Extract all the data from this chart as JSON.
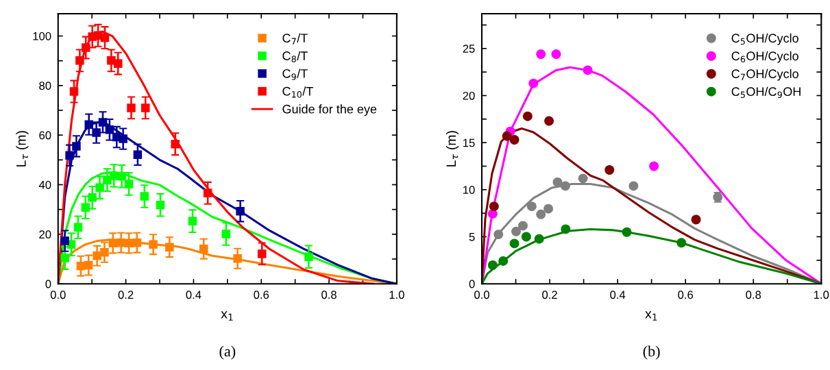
{
  "chart_data": [
    {
      "type": "scatter",
      "xlabel": "x$_{1}$",
      "ylabel": "L$_{τ}$ (m)",
      "annotations": [
        "(a)"
      ],
      "legend": "top right",
      "grid": false,
      "xlim": [
        0,
        1
      ],
      "xticks": [
        {
          "value": 0,
          "label": "0.0"
        },
        {
          "value": 0.1,
          "label": null
        },
        {
          "value": 0.2,
          "label": "0.2"
        },
        {
          "value": 0.3,
          "label": null
        },
        {
          "value": 0.4,
          "label": "0.4"
        },
        {
          "value": 0.5,
          "label": null
        },
        {
          "value": 0.6,
          "label": "0.6"
        },
        {
          "value": 0.7,
          "label": null
        },
        {
          "value": 0.8,
          "label": "0.8"
        },
        {
          "value": 0.9,
          "label": null
        },
        {
          "value": 1.0,
          "label": "1.0"
        }
      ],
      "ylim": [
        0,
        109
      ],
      "yticks": [
        0,
        {
          "value": 10,
          "label": null
        },
        20,
        {
          "value": 30,
          "label": null
        },
        40,
        {
          "value": 50,
          "label": null
        },
        60,
        {
          "value": 70,
          "label": null
        },
        80,
        {
          "value": 90,
          "label": null
        },
        100
      ],
      "series": [
        {
          "name": "C$_{7}$/T",
          "color": "#ff8000",
          "marker": "square",
          "x": [
            0.067,
            0.09,
            0.115,
            0.137,
            0.162,
            0.186,
            0.209,
            0.233,
            0.281,
            0.329,
            0.43,
            0.53
          ],
          "values": [
            7.2,
            7.5,
            11.3,
            12.7,
            16.4,
            16.6,
            16.4,
            16.6,
            15.9,
            14.8,
            14.1,
            10.2
          ],
          "errors": [
            4,
            4,
            4,
            4,
            4,
            4,
            4,
            4,
            4,
            4,
            4,
            4
          ]
        },
        {
          "name": "C$_{8}$/T",
          "color": "#00ff00",
          "marker": "square",
          "x": [
            0.02,
            0.039,
            0.059,
            0.081,
            0.101,
            0.123,
            0.145,
            0.165,
            0.188,
            0.209,
            0.255,
            0.302,
            0.397,
            0.496,
            0.74
          ],
          "values": [
            10.4,
            15.9,
            22.8,
            30.8,
            34.8,
            38.8,
            41.9,
            43.6,
            43.4,
            40.3,
            35.3,
            31.8,
            25.3,
            20.1,
            10.9
          ],
          "errors": [
            4.5,
            4.5,
            4.5,
            4.5,
            4.5,
            4.5,
            4.5,
            4.5,
            4.5,
            4.5,
            4.5,
            4.5,
            4.5,
            4.5,
            4.5
          ]
        },
        {
          "name": "C$_{9}$/T",
          "color": "#000099",
          "marker": "square",
          "x": [
            0.02,
            0.034,
            0.054,
            0.091,
            0.113,
            0.132,
            0.152,
            0.173,
            0.192,
            0.235,
            0.538
          ],
          "values": [
            17.3,
            51.8,
            55.5,
            64.3,
            61.0,
            65.2,
            62.2,
            59.2,
            58.5,
            52.1,
            29.3
          ],
          "errors": [
            4.2,
            4.2,
            4.2,
            4.2,
            4.2,
            4.2,
            4.2,
            4.2,
            4.2,
            4.2,
            4.2
          ]
        },
        {
          "name": "C$_{10}$/T",
          "color": "#ff0000",
          "marker": "square",
          "x": [
            0.047,
            0.064,
            0.082,
            0.101,
            0.118,
            0.138,
            0.157,
            0.177,
            0.216,
            0.258,
            0.346,
            0.442,
            0.602
          ],
          "values": [
            77.6,
            90.1,
            95.3,
            99.7,
            100.2,
            99.3,
            90.1,
            88.9,
            71.0,
            71.0,
            56.4,
            36.6,
            12.1
          ],
          "errors": [
            4.4,
            4.4,
            4.4,
            4.4,
            4.4,
            4.4,
            4.4,
            4.4,
            4.4,
            4.4,
            4.4,
            4.4,
            4.4
          ]
        },
        {
          "type": "line",
          "color": "#ff8000",
          "marker": "none",
          "line_style": "solid",
          "x": [
            0,
            0.02,
            0.047,
            0.081,
            0.115,
            0.155,
            0.2,
            0.25,
            0.3,
            0.354,
            0.385,
            0.455,
            0.545,
            0.624,
            0.725,
            0.826,
            0.928,
            1
          ],
          "values": [
            0,
            9.5,
            13.2,
            15.9,
            17.3,
            17.8,
            17.3,
            16.4,
            15.7,
            15.0,
            14.1,
            11.3,
            9.5,
            7.6,
            5.3,
            3.0,
            1.2,
            0
          ]
        },
        {
          "type": "line",
          "color": "#00ff00",
          "marker": "none",
          "line_style": "solid",
          "x": [
            0,
            0.02,
            0.04,
            0.06,
            0.08,
            0.1,
            0.13,
            0.16,
            0.2,
            0.25,
            0.3,
            0.354,
            0.385,
            0.455,
            0.545,
            0.624,
            0.725,
            0.826,
            0.928,
            1
          ],
          "values": [
            0,
            20,
            30,
            36,
            40,
            42.5,
            44.5,
            45,
            44,
            41.5,
            39.9,
            35.3,
            33,
            27,
            22.4,
            17.8,
            12.2,
            6.7,
            2.1,
            0
          ]
        },
        {
          "type": "line",
          "color": "#000099",
          "marker": "none",
          "line_style": "solid",
          "x": [
            0,
            0.02,
            0.04,
            0.06,
            0.08,
            0.1,
            0.13,
            0.152,
            0.2,
            0.3,
            0.354,
            0.385,
            0.455,
            0.538,
            0.624,
            0.725,
            0.826,
            0.928,
            1
          ],
          "values": [
            0,
            35,
            50,
            57,
            62,
            64.5,
            65.5,
            63.8,
            59.2,
            50,
            46.3,
            43.1,
            35.7,
            29.3,
            21.5,
            14.1,
            7.6,
            2.1,
            0
          ]
        },
        {
          "type": "line",
          "name": "Guide for the eye",
          "color": "#ff0000",
          "marker": "none",
          "line_style": "solid",
          "x": [
            0,
            0.02,
            0.04,
            0.06,
            0.08,
            0.1,
            0.13,
            0.16,
            0.2,
            0.25,
            0.3,
            0.354,
            0.4,
            0.455,
            0.5,
            0.545,
            0.624,
            0.725,
            0.826,
            0.93
          ],
          "values": [
            0,
            40,
            66,
            84,
            95,
            100,
            101.8,
            100,
            93,
            81,
            68,
            56.9,
            46,
            36.2,
            29,
            22.8,
            14.1,
            5.8,
            1.2,
            0
          ]
        }
      ]
    },
    {
      "type": "scatter",
      "xlabel": "x$_{1}$",
      "ylabel": "L$_{τ}$ (m)",
      "annotations": [
        "(b)"
      ],
      "legend": "top right",
      "grid": false,
      "xlim": [
        0,
        1
      ],
      "xticks": [
        {
          "value": 0,
          "label": "0.0"
        },
        {
          "value": 0.1,
          "label": null
        },
        {
          "value": 0.2,
          "label": "0.2"
        },
        {
          "value": 0.3,
          "label": null
        },
        {
          "value": 0.4,
          "label": "0.4"
        },
        {
          "value": 0.5,
          "label": null
        },
        {
          "value": 0.6,
          "label": "0.6"
        },
        {
          "value": 0.7,
          "label": null
        },
        {
          "value": 0.8,
          "label": "0.8"
        },
        {
          "value": 0.9,
          "label": null
        },
        {
          "value": 1.0,
          "label": "1.0"
        }
      ],
      "ylim": [
        0,
        28.7
      ],
      "yticks": [
        0,
        {
          "value": 2.5,
          "label": null
        },
        5,
        {
          "value": 7.5,
          "label": null
        },
        10,
        {
          "value": 12.5,
          "label": null
        },
        15,
        {
          "value": 17.5,
          "label": null
        },
        20,
        {
          "value": 22.5,
          "label": null
        },
        25,
        {
          "value": 27.5,
          "label": null
        }
      ],
      "series": [
        {
          "name": "C$_{5}$OH/Cyclo",
          "color": "#808080",
          "marker": "circle",
          "x": [
            0.049,
            0.101,
            0.121,
            0.147,
            0.174,
            0.196,
            0.223,
            0.246,
            0.298,
            0.447,
            0.695
          ],
          "values": [
            5.25,
            5.56,
            6.17,
            8.23,
            7.38,
            7.98,
            10.8,
            10.4,
            11.2,
            10.4,
            9.2
          ],
          "errors": [
            null,
            null,
            null,
            null,
            null,
            null,
            null,
            null,
            null,
            null,
            0.5
          ]
        },
        {
          "name": "C$_{6}$OH/Cyclo",
          "color": "#ff00ff",
          "marker": "circle",
          "x": [
            0.032,
            0.084,
            0.152,
            0.174,
            0.219,
            0.312,
            0.507
          ],
          "values": [
            7.43,
            16.2,
            21.3,
            24.4,
            24.4,
            22.7,
            12.5
          ]
        },
        {
          "name": "C$_{7}$OH/Cyclo",
          "color": "#800000",
          "marker": "circle",
          "x": [
            0.036,
            0.074,
            0.096,
            0.135,
            0.198,
            0.376,
            0.631
          ],
          "values": [
            8.23,
            15.7,
            15.3,
            17.8,
            17.3,
            12.1,
            6.82
          ]
        },
        {
          "name": "C$_{5}$OH/C$_{9}$OH",
          "color": "#008000",
          "marker": "circle",
          "x": [
            0.032,
            0.063,
            0.096,
            0.131,
            0.169,
            0.247,
            0.427,
            0.588
          ],
          "values": [
            1.98,
            2.42,
            4.28,
            5.0,
            4.77,
            5.81,
            5.49,
            4.36
          ]
        },
        {
          "type": "line",
          "color": "#808080",
          "marker": "none",
          "line_style": "solid",
          "x": [
            0,
            0.017,
            0.051,
            0.101,
            0.152,
            0.206,
            0.266,
            0.32,
            0.388,
            0.424,
            0.491,
            0.559,
            0.626,
            0.694,
            0.795,
            0.896,
            1
          ],
          "values": [
            0,
            3.3,
            5.4,
            7.4,
            9.1,
            10.2,
            10.6,
            10.6,
            10.2,
            9.6,
            8.6,
            7.4,
            5.9,
            4.7,
            3.0,
            1.6,
            0
          ]
        },
        {
          "type": "line",
          "color": "#ff00ff",
          "marker": "none",
          "line_style": "solid",
          "x": [
            0,
            0.03,
            0.084,
            0.152,
            0.219,
            0.26,
            0.312,
            0.356,
            0.424,
            0.505,
            0.592,
            0.693,
            0.795,
            0.896,
            1
          ],
          "values": [
            0,
            7.4,
            16.2,
            21.2,
            22.7,
            23,
            22.7,
            22.1,
            20.4,
            18.0,
            14.6,
            10.3,
            5.9,
            2.5,
            0
          ]
        },
        {
          "type": "line",
          "color": "#800000",
          "marker": "none",
          "line_style": "solid",
          "x": [
            0,
            0.01,
            0.03,
            0.057,
            0.084,
            0.118,
            0.152,
            0.2,
            0.253,
            0.32,
            0.356,
            0.424,
            0.491,
            0.559,
            0.626,
            0.694,
            0.795,
            0.896,
            1
          ],
          "values": [
            0,
            6.9,
            11.7,
            15.1,
            16.1,
            16.5,
            16.1,
            14.9,
            13.3,
            11.5,
            11.0,
            9.3,
            7.6,
            6.05,
            4.7,
            3.75,
            2.54,
            1.33,
            0
          ]
        },
        {
          "type": "line",
          "color": "#008000",
          "marker": "none",
          "line_style": "solid",
          "x": [
            0,
            0.017,
            0.063,
            0.101,
            0.169,
            0.253,
            0.32,
            0.388,
            0.427,
            0.491,
            0.588,
            0.66,
            0.761,
            0.896,
            1
          ],
          "values": [
            0,
            1.1,
            2.42,
            3.5,
            4.7,
            5.6,
            5.8,
            5.7,
            5.5,
            5.1,
            4.36,
            3.5,
            2.3,
            1.1,
            0
          ]
        }
      ]
    }
  ]
}
